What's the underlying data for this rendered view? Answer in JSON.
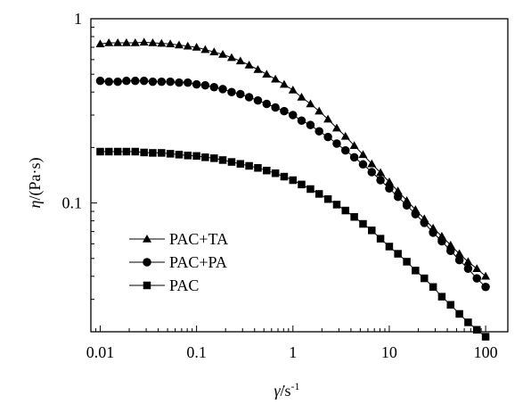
{
  "chart_data": {
    "type": "scatter",
    "title": "",
    "xlabel": {
      "symbol": "γ̇",
      "unit": "/s",
      "exponent": "-1"
    },
    "ylabel": {
      "symbol": "η",
      "unit": "/(Pa·s)"
    },
    "xscale": "log",
    "yscale": "log",
    "xlim": [
      0.008,
      170
    ],
    "ylim": [
      0.02,
      1
    ],
    "xticks": [
      {
        "value": 0.01,
        "label": "0.01"
      },
      {
        "value": 0.1,
        "label": "0.1"
      },
      {
        "value": 1,
        "label": "1"
      },
      {
        "value": 10,
        "label": "10"
      },
      {
        "value": 100,
        "label": "100"
      }
    ],
    "yticks": [
      {
        "value": 0.1,
        "label": "0.1"
      },
      {
        "value": 1,
        "label": "1"
      }
    ],
    "grid": false,
    "legend_position": "bottom-left",
    "series": [
      {
        "name": "PAC+TA",
        "marker": "triangle",
        "x": [
          0.01,
          0.0123,
          0.0152,
          0.0187,
          0.0231,
          0.0285,
          0.0351,
          0.0433,
          0.0534,
          0.0658,
          0.0811,
          0.1,
          0.123,
          0.152,
          0.187,
          0.231,
          0.285,
          0.351,
          0.433,
          0.534,
          0.658,
          0.811,
          1,
          1.23,
          1.52,
          1.87,
          2.31,
          2.85,
          3.51,
          4.33,
          5.34,
          6.58,
          8.11,
          10,
          12.3,
          15.2,
          18.7,
          23.1,
          28.5,
          35.1,
          43.3,
          53.4,
          65.8,
          81.1,
          100
        ],
        "y": [
          0.73,
          0.74,
          0.74,
          0.74,
          0.74,
          0.745,
          0.74,
          0.735,
          0.73,
          0.72,
          0.71,
          0.7,
          0.68,
          0.66,
          0.64,
          0.615,
          0.59,
          0.56,
          0.53,
          0.5,
          0.47,
          0.44,
          0.41,
          0.375,
          0.345,
          0.315,
          0.285,
          0.255,
          0.23,
          0.205,
          0.183,
          0.163,
          0.146,
          0.13,
          0.116,
          0.103,
          0.092,
          0.082,
          0.073,
          0.066,
          0.059,
          0.053,
          0.048,
          0.044,
          0.04
        ]
      },
      {
        "name": "PAC+PA",
        "marker": "circle",
        "x": [
          0.01,
          0.0123,
          0.0152,
          0.0187,
          0.0231,
          0.0285,
          0.0351,
          0.0433,
          0.0534,
          0.0658,
          0.0811,
          0.1,
          0.123,
          0.152,
          0.187,
          0.231,
          0.285,
          0.351,
          0.433,
          0.534,
          0.658,
          0.811,
          1,
          1.23,
          1.52,
          1.87,
          2.31,
          2.85,
          3.51,
          4.33,
          5.34,
          6.58,
          8.11,
          10,
          12.3,
          15.2,
          18.7,
          23.1,
          28.5,
          35.1,
          43.3,
          53.4,
          65.8,
          81.1,
          100
        ],
        "y": [
          0.46,
          0.455,
          0.455,
          0.46,
          0.46,
          0.46,
          0.455,
          0.455,
          0.455,
          0.45,
          0.45,
          0.44,
          0.435,
          0.425,
          0.415,
          0.4,
          0.39,
          0.375,
          0.36,
          0.345,
          0.33,
          0.315,
          0.3,
          0.28,
          0.265,
          0.245,
          0.228,
          0.21,
          0.193,
          0.177,
          0.162,
          0.147,
          0.133,
          0.12,
          0.108,
          0.097,
          0.087,
          0.078,
          0.069,
          0.062,
          0.055,
          0.049,
          0.044,
          0.039,
          0.035
        ]
      },
      {
        "name": "PAC",
        "marker": "square",
        "x": [
          0.01,
          0.0123,
          0.0152,
          0.0187,
          0.0231,
          0.0285,
          0.0351,
          0.0433,
          0.0534,
          0.0658,
          0.0811,
          0.1,
          0.123,
          0.152,
          0.187,
          0.231,
          0.285,
          0.351,
          0.433,
          0.534,
          0.658,
          0.811,
          1,
          1.23,
          1.52,
          1.87,
          2.31,
          2.85,
          3.51,
          4.33,
          5.34,
          6.58,
          8.11,
          10,
          12.3,
          15.2,
          18.7,
          23.1,
          28.5,
          35.1,
          43.3,
          53.4,
          65.8,
          81.1,
          100
        ],
        "y": [
          0.19,
          0.19,
          0.19,
          0.19,
          0.19,
          0.188,
          0.187,
          0.187,
          0.185,
          0.183,
          0.181,
          0.18,
          0.177,
          0.175,
          0.171,
          0.167,
          0.163,
          0.159,
          0.155,
          0.15,
          0.145,
          0.139,
          0.133,
          0.126,
          0.119,
          0.112,
          0.105,
          0.098,
          0.091,
          0.084,
          0.077,
          0.071,
          0.064,
          0.058,
          0.053,
          0.048,
          0.043,
          0.039,
          0.035,
          0.031,
          0.028,
          0.025,
          0.0225,
          0.0205,
          0.0188
        ]
      }
    ]
  }
}
